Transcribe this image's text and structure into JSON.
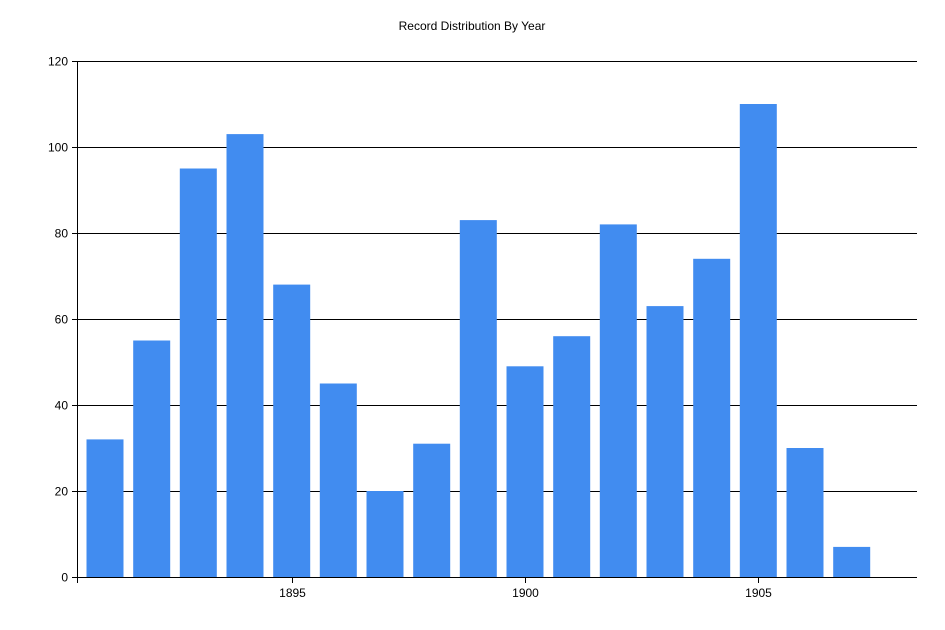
{
  "chart_data": {
    "type": "bar",
    "title": "Record Distribution By Year",
    "xlabel": "",
    "ylabel": "",
    "x": [
      1891,
      1892,
      1893,
      1894,
      1895,
      1896,
      1897,
      1898,
      1899,
      1900,
      1901,
      1902,
      1903,
      1904,
      1905,
      1906,
      1907
    ],
    "values": [
      32,
      55,
      95,
      103,
      68,
      45,
      20,
      31,
      83,
      49,
      56,
      82,
      63,
      74,
      110,
      30,
      7
    ],
    "xlim": [
      1890.4,
      1908.4
    ],
    "ylim": [
      0,
      120
    ],
    "x_ticks": [
      1895,
      1900,
      1905
    ],
    "y_ticks": [
      0,
      20,
      40,
      60,
      80,
      100,
      120
    ],
    "grid": "horizontal",
    "bar_color": "#418cf0",
    "legend": "none"
  }
}
